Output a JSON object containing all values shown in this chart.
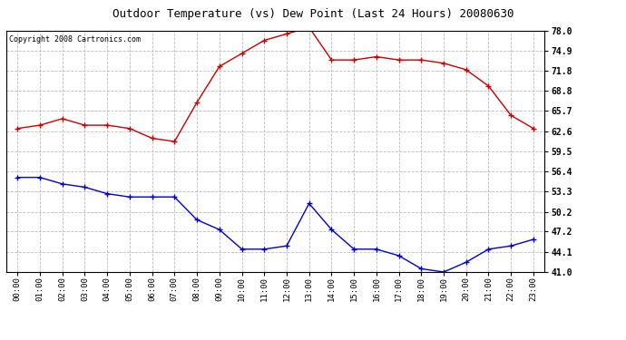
{
  "title": "Outdoor Temperature (vs) Dew Point (Last 24 Hours) 20080630",
  "copyright": "Copyright 2008 Cartronics.com",
  "x_labels": [
    "00:00",
    "01:00",
    "02:00",
    "03:00",
    "04:00",
    "05:00",
    "06:00",
    "07:00",
    "08:00",
    "09:00",
    "10:00",
    "11:00",
    "12:00",
    "13:00",
    "14:00",
    "15:00",
    "16:00",
    "17:00",
    "18:00",
    "19:00",
    "20:00",
    "21:00",
    "22:00",
    "23:00"
  ],
  "temp_red": [
    63.0,
    63.5,
    64.5,
    63.5,
    63.5,
    63.0,
    61.5,
    61.0,
    67.0,
    72.5,
    74.5,
    76.5,
    77.5,
    78.5,
    73.5,
    73.5,
    74.0,
    73.5,
    73.5,
    73.0,
    72.0,
    69.5,
    65.0,
    63.0
  ],
  "dew_blue": [
    55.5,
    55.5,
    54.5,
    54.0,
    53.0,
    52.5,
    52.5,
    52.5,
    49.0,
    47.5,
    44.5,
    44.5,
    45.0,
    51.5,
    47.5,
    44.5,
    44.5,
    43.5,
    41.5,
    41.0,
    42.5,
    44.5,
    45.0,
    46.0
  ],
  "y_ticks": [
    41.0,
    44.1,
    47.2,
    50.2,
    53.3,
    56.4,
    59.5,
    62.6,
    65.7,
    68.8,
    71.8,
    74.9,
    78.0
  ],
  "ylim": [
    41.0,
    78.0
  ],
  "red_color": "#cc0000",
  "blue_color": "#0000cc",
  "bg_color": "#ffffff",
  "grid_color": "#bbbbbb",
  "title_fontsize": 9,
  "copyright_fontsize": 6,
  "tick_fontsize": 6.5,
  "ytick_fontsize": 7
}
